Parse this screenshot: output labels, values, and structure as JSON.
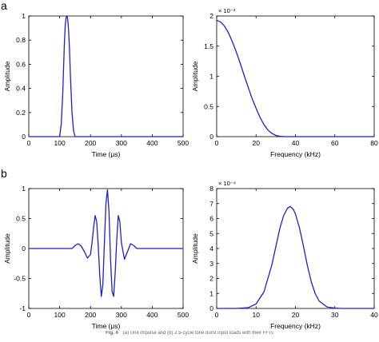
{
  "panel_labels": [
    "a",
    "b"
  ],
  "caption": {
    "label": "Fig. 4",
    "text": "(a) Unit impulse and (b) 2.5-cycle tone burst input loads with their FFTs"
  },
  "colors": {
    "line": "#1f1fd0",
    "axis": "#000000"
  },
  "chart_data": [
    {
      "type": "line",
      "title": "",
      "xlabel": "Time (μs)",
      "ylabel": "Amplitude",
      "xlim": [
        0,
        500
      ],
      "ylim": [
        0,
        1
      ],
      "xticks": [
        0,
        100,
        200,
        300,
        400,
        500
      ],
      "yticks": [
        0,
        0.2,
        0.4,
        0.6,
        0.8,
        1
      ],
      "ytick_labels": [
        "0",
        "0.2",
        "0.4",
        "0.6",
        "0.8",
        "1"
      ],
      "exponent_label": "",
      "series": [
        {
          "x": [
            0,
            100,
            105,
            110,
            115,
            118,
            121,
            123,
            125,
            127,
            129,
            132,
            135,
            140,
            145,
            150,
            500
          ],
          "y": [
            0,
            0,
            0.1,
            0.35,
            0.75,
            0.92,
            0.99,
            1.0,
            0.99,
            0.95,
            0.88,
            0.72,
            0.5,
            0.2,
            0.05,
            0,
            0
          ]
        }
      ]
    },
    {
      "type": "line",
      "title": "",
      "xlabel": "Frequency (kHz)",
      "ylabel": "Amplitude",
      "xlim": [
        0,
        80
      ],
      "ylim": [
        0,
        2
      ],
      "xticks": [
        0,
        20,
        40,
        60,
        80
      ],
      "yticks": [
        0,
        0.5,
        1,
        1.5,
        2
      ],
      "ytick_labels": [
        "0",
        "0.5",
        "1",
        "1.5",
        "2"
      ],
      "exponent_label": "× 10⁻³",
      "series": [
        {
          "x": [
            0,
            2,
            4,
            6,
            8,
            10,
            12,
            14,
            16,
            18,
            20,
            22,
            24,
            26,
            28,
            30,
            32,
            34,
            36,
            38,
            40,
            80
          ],
          "y": [
            1.93,
            1.9,
            1.83,
            1.72,
            1.57,
            1.4,
            1.21,
            1.01,
            0.82,
            0.63,
            0.47,
            0.32,
            0.2,
            0.11,
            0.055,
            0.02,
            0.006,
            0.001,
            0,
            0,
            0,
            0
          ]
        }
      ]
    },
    {
      "type": "line",
      "title": "",
      "xlabel": "Time (μs)",
      "ylabel": "Amplitude",
      "xlim": [
        0,
        500
      ],
      "ylim": [
        -1,
        1
      ],
      "xticks": [
        0,
        100,
        200,
        300,
        400,
        500
      ],
      "yticks": [
        -1,
        -0.5,
        0,
        0.5,
        1
      ],
      "ytick_labels": [
        "-1",
        "-0.5",
        "0",
        "0.5",
        "1"
      ],
      "exponent_label": "",
      "series": [
        {
          "x": [
            0,
            100,
            120,
            140,
            150,
            160,
            170,
            180,
            190,
            200,
            205,
            210,
            215,
            220,
            225,
            230,
            235,
            240,
            245,
            250,
            255,
            260,
            265,
            270,
            275,
            280,
            285,
            290,
            295,
            300,
            310,
            320,
            330,
            340,
            350,
            360,
            380,
            400,
            500
          ],
          "y": [
            0,
            0,
            0,
            0,
            0.05,
            0.08,
            0.04,
            -0.05,
            -0.16,
            -0.1,
            0.1,
            0.35,
            0.55,
            0.45,
            0.05,
            -0.45,
            -0.8,
            -0.6,
            0.1,
            0.75,
            0.98,
            0.6,
            -0.2,
            -0.72,
            -0.8,
            -0.4,
            0.15,
            0.55,
            0.45,
            0.1,
            -0.18,
            -0.05,
            0.08,
            0.05,
            0,
            0,
            0,
            0,
            0
          ]
        }
      ]
    },
    {
      "type": "line",
      "title": "",
      "xlabel": "Frequency (kHz)",
      "ylabel": "Amplitude",
      "xlim": [
        0,
        40
      ],
      "ylim": [
        0,
        8
      ],
      "xticks": [
        0,
        10,
        20,
        30,
        40
      ],
      "yticks": [
        0,
        1,
        2,
        3,
        4,
        5,
        6,
        7,
        8
      ],
      "ytick_labels": [
        "0",
        "1",
        "2",
        "3",
        "4",
        "5",
        "6",
        "7",
        "8"
      ],
      "exponent_label": "× 10⁻⁴",
      "series": [
        {
          "x": [
            0,
            5,
            8,
            10,
            12,
            14,
            15,
            16,
            17,
            18,
            18.7,
            19.5,
            20,
            21,
            22,
            23,
            24,
            25,
            26,
            28,
            30,
            32,
            40
          ],
          "y": [
            0,
            0,
            0.05,
            0.3,
            1.1,
            2.9,
            4.1,
            5.3,
            6.2,
            6.7,
            6.8,
            6.6,
            6.3,
            5.4,
            4.2,
            2.9,
            1.8,
            1.0,
            0.5,
            0.1,
            0.02,
            0,
            0
          ]
        }
      ]
    }
  ]
}
